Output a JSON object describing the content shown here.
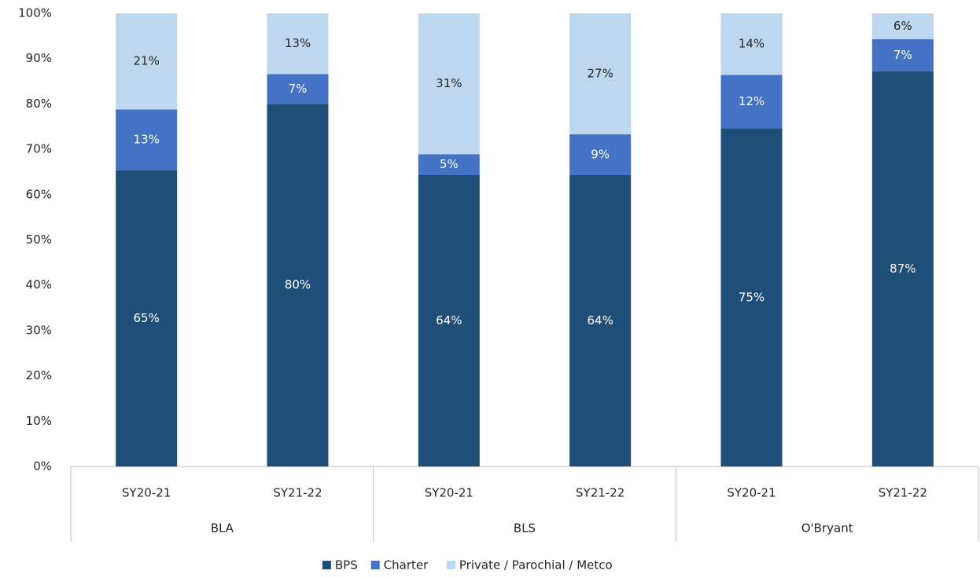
{
  "chart_data": {
    "type": "stacked_bar",
    "groups": [
      "BLA",
      "BLS",
      "O'Bryant"
    ],
    "categories": [
      "SY20-21",
      "SY21-22",
      "SY20-21",
      "SY21-22",
      "SY20-21",
      "SY21-22"
    ],
    "series": [
      {
        "name": "BPS",
        "color": "#1f4e79",
        "values": [
          65.4,
          80.0,
          64.3,
          64.3,
          74.6,
          87.2
        ],
        "value_labels": [
          "65%",
          "80%",
          "64%",
          "64%",
          "75%",
          "87%"
        ]
      },
      {
        "name": "Charter",
        "color": "#4472c4",
        "values": [
          13.4,
          6.6,
          4.6,
          9.0,
          11.8,
          7.1
        ],
        "value_labels": [
          "13%",
          "7%",
          "5%",
          "9%",
          "12%",
          "7%"
        ]
      },
      {
        "name": "Private / Parochial / Metco",
        "color": "#bdd7ee",
        "values": [
          21.2,
          13.4,
          31.1,
          26.7,
          13.6,
          5.7
        ],
        "value_labels": [
          "21%",
          "13%",
          "31%",
          "27%",
          "14%",
          "6%"
        ]
      }
    ],
    "ylim": [
      0,
      100
    ],
    "yticks": [
      {
        "value": 0,
        "label": "0%"
      },
      {
        "value": 10,
        "label": "10%"
      },
      {
        "value": 20,
        "label": "20%"
      },
      {
        "value": 30,
        "label": "30%"
      },
      {
        "value": 40,
        "label": "40%"
      },
      {
        "value": 50,
        "label": "50%"
      },
      {
        "value": 60,
        "label": "60%"
      },
      {
        "value": 70,
        "label": "70%"
      },
      {
        "value": 80,
        "label": "80%"
      },
      {
        "value": 90,
        "label": "90%"
      },
      {
        "value": 100,
        "label": "100%"
      }
    ],
    "grid": false,
    "legend": "bottom"
  }
}
